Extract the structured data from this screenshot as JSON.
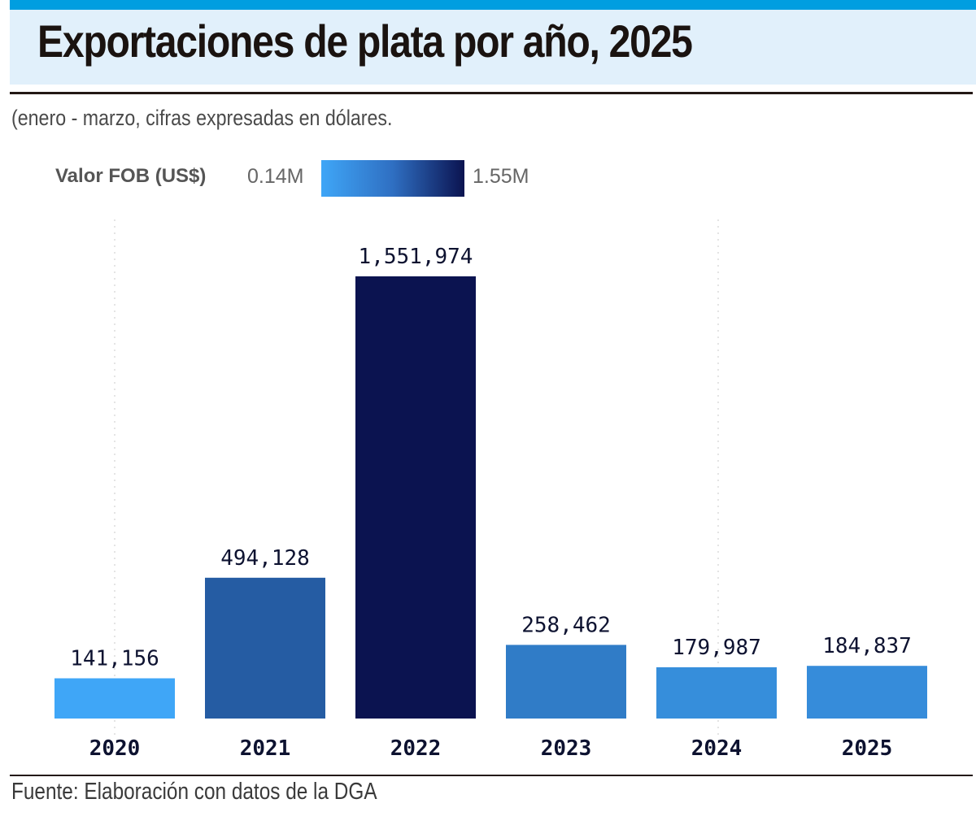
{
  "header": {
    "title": "Exportaciones de plata por año, 2025",
    "subtitle": "(enero - marzo, cifras expresadas en dólares."
  },
  "legend": {
    "title": "Valor FOB (US$)",
    "min_label": "0.14M",
    "max_label": "1.55M",
    "color_min": "#3fa6f7",
    "color_max": "#0b1350"
  },
  "footer": {
    "source": "Fuente: Elaboración con datos de la DGA"
  },
  "chart_data": {
    "type": "bar",
    "title": "Exportaciones de plata por año, 2025",
    "subtitle": "(enero - marzo, cifras expresadas en dólares.",
    "xlabel": "",
    "ylabel": "Valor FOB (US$)",
    "categories": [
      "2020",
      "2021",
      "2022",
      "2023",
      "2024",
      "2025"
    ],
    "values": [
      141156,
      494128,
      1551974,
      258462,
      179987,
      184837
    ],
    "value_labels": [
      "141,156",
      "494,128",
      "1,551,974",
      "258,462",
      "179,987",
      "184,837"
    ],
    "ylim": [
      0,
      1551974
    ],
    "color_scale": {
      "min": 141156,
      "max": 1551974,
      "min_color": "#3fa6f7",
      "max_color": "#0b1350"
    },
    "grid": false,
    "legend_position": "top-left"
  }
}
